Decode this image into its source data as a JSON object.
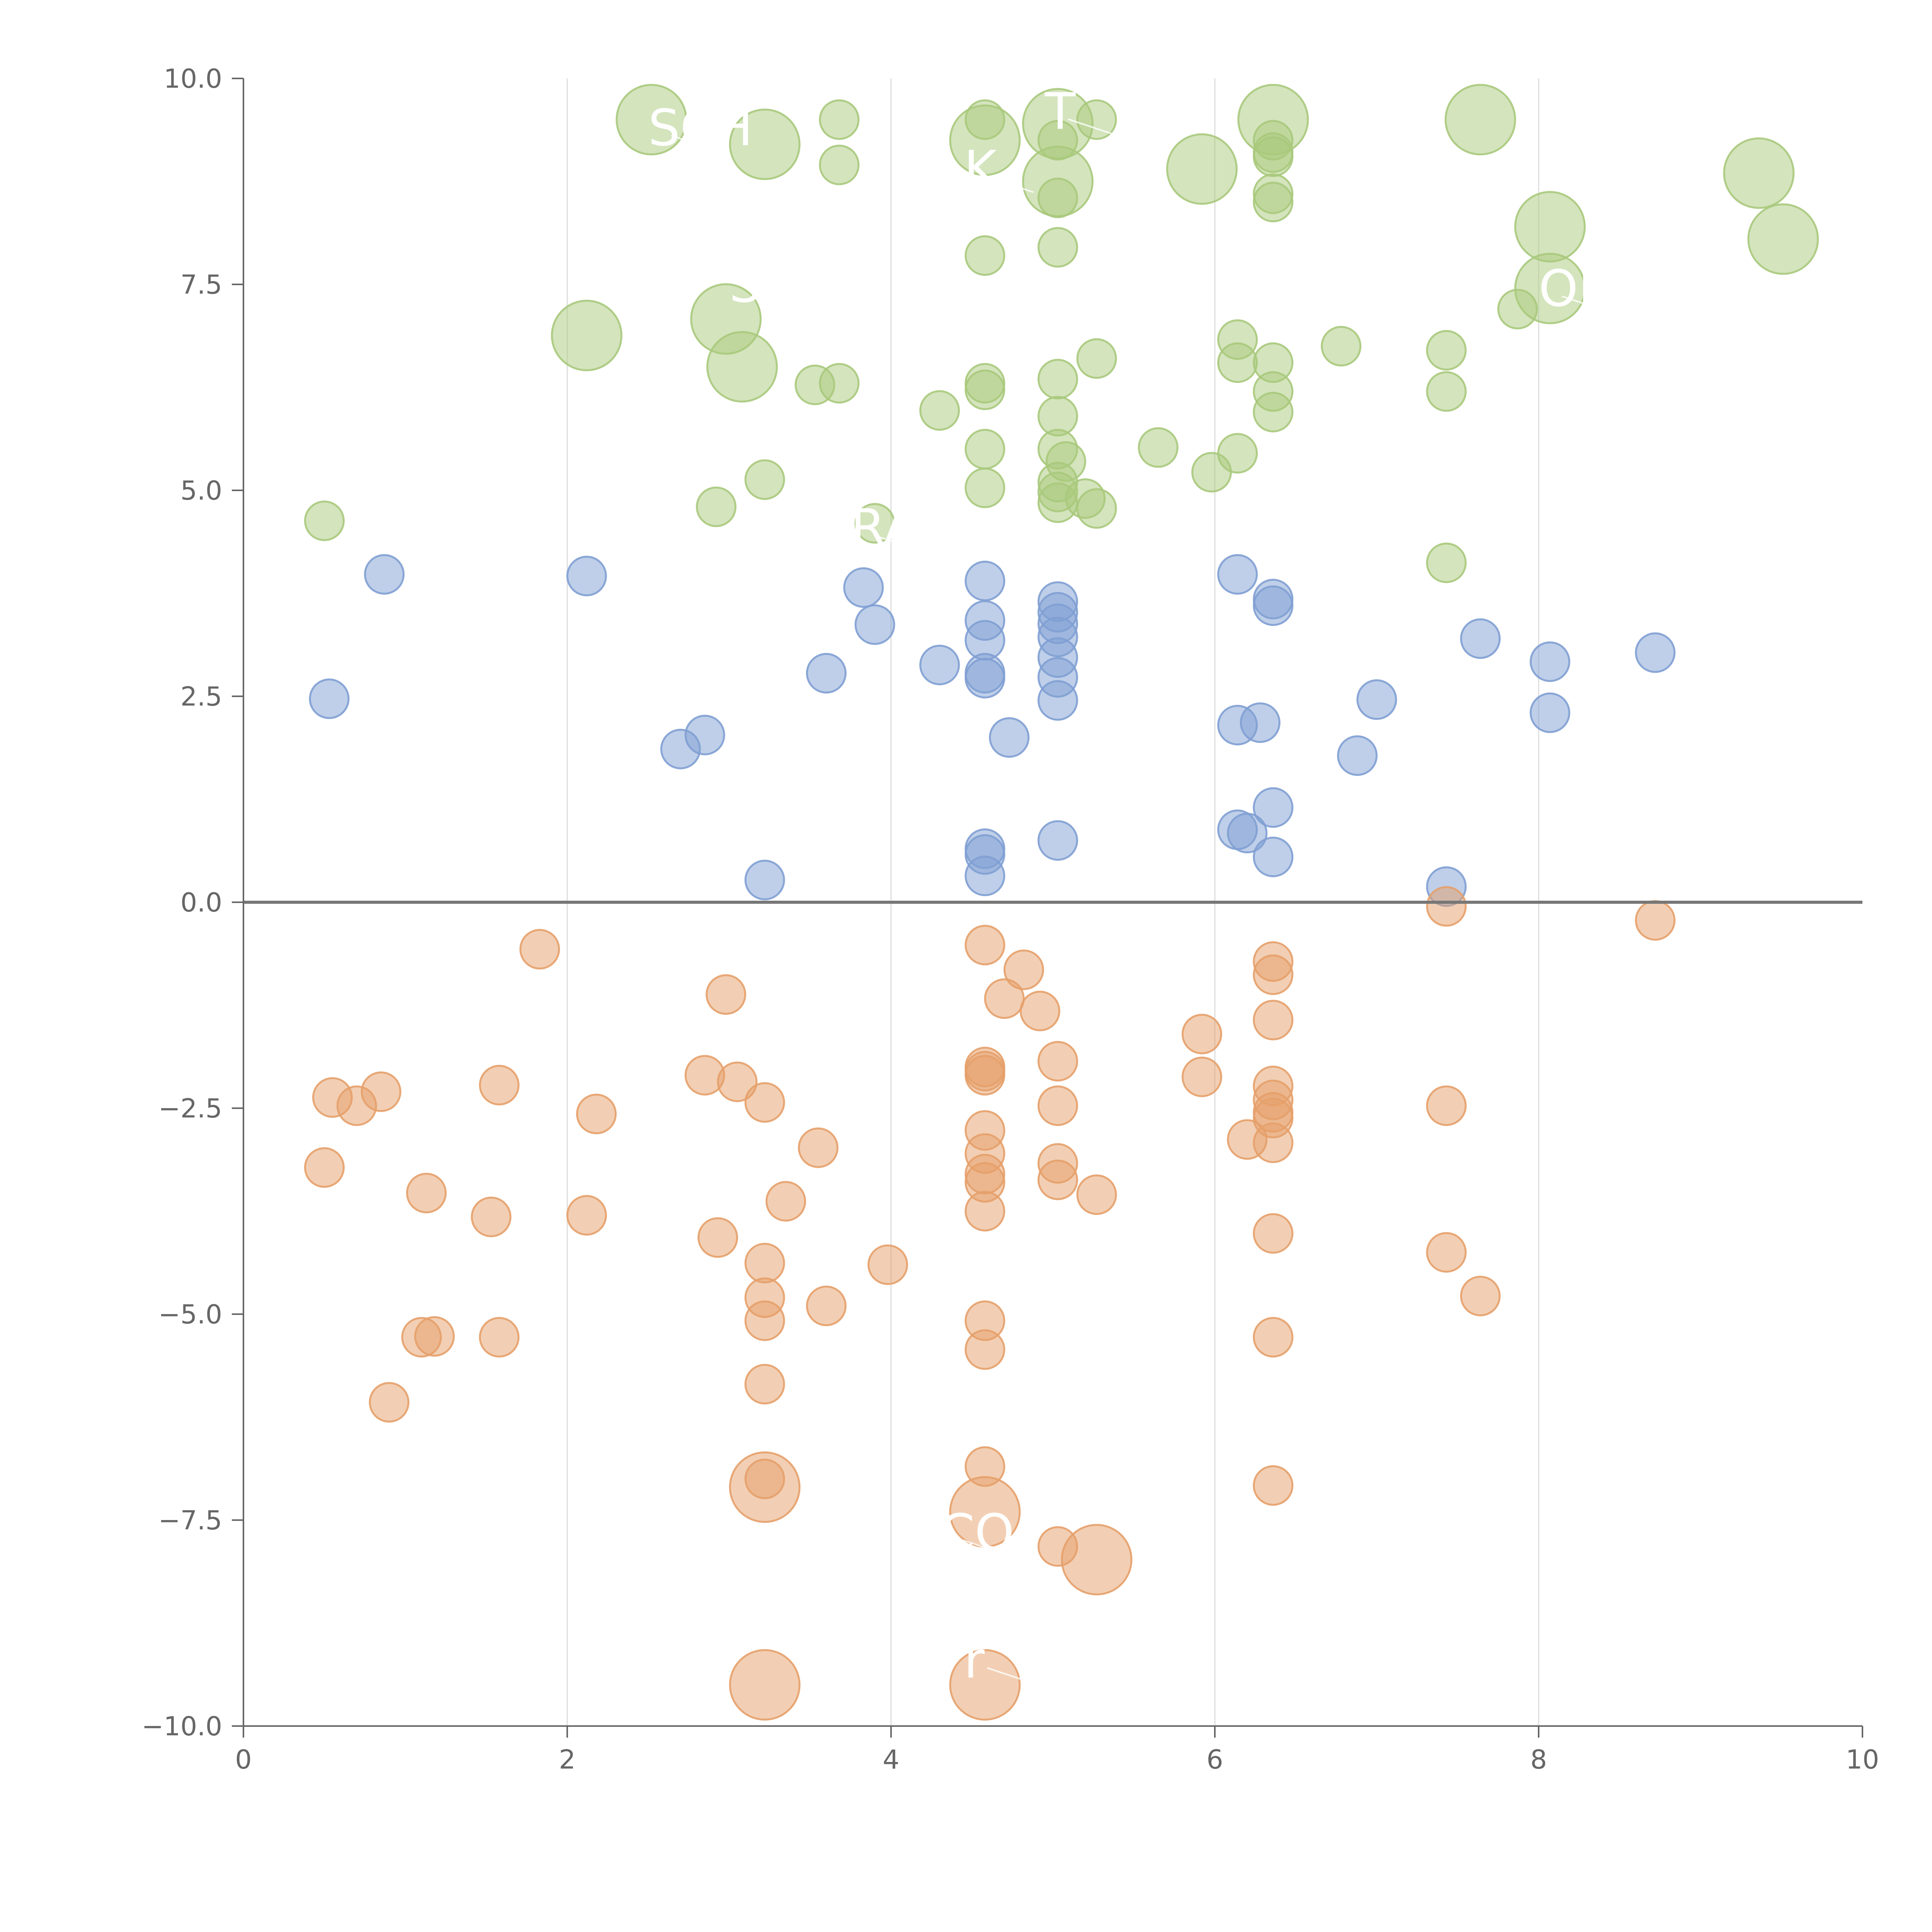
{
  "chart_data": {
    "type": "scatter",
    "title": "",
    "xlabel": "",
    "ylabel": "",
    "xlim": [
      0,
      10
    ],
    "ylim": [
      -10,
      10
    ],
    "grid": "vertical",
    "x_ticks": [
      "0",
      "2",
      "4",
      "6",
      "8",
      "10"
    ],
    "y_ticks": [
      "10.0",
      "7.5",
      "5.0",
      "2.5",
      "0.0",
      "−2.5",
      "−5.0",
      "−7.5",
      "−10.0"
    ],
    "colors": {
      "green": "#a9c97c",
      "blue": "#7f9fd3",
      "orange": "#e6a06a",
      "axis": "#666666",
      "grid": "#dddddd",
      "zero_line": "#777777"
    },
    "series": [
      {
        "name": "green",
        "color": "#a9c97c",
        "points": [
          {
            "x": 2.52,
            "y": 9.5,
            "s": "L"
          },
          {
            "x": 3.22,
            "y": 9.2,
            "s": "L"
          },
          {
            "x": 3.68,
            "y": 9.5,
            "s": "S"
          },
          {
            "x": 3.68,
            "y": 8.95,
            "s": "S"
          },
          {
            "x": 4.58,
            "y": 9.5,
            "s": "S"
          },
          {
            "x": 4.58,
            "y": 9.25,
            "s": "L"
          },
          {
            "x": 5.03,
            "y": 9.45,
            "s": "L"
          },
          {
            "x": 5.27,
            "y": 9.5,
            "s": "S"
          },
          {
            "x": 5.03,
            "y": 9.25,
            "s": "S"
          },
          {
            "x": 5.03,
            "y": 8.75,
            "s": "L"
          },
          {
            "x": 5.03,
            "y": 8.55,
            "s": "S"
          },
          {
            "x": 5.92,
            "y": 8.9,
            "s": "L"
          },
          {
            "x": 6.36,
            "y": 9.5,
            "s": "L"
          },
          {
            "x": 6.36,
            "y": 9.25,
            "s": "S"
          },
          {
            "x": 6.36,
            "y": 9.1,
            "s": "S"
          },
          {
            "x": 6.36,
            "y": 9.05,
            "s": "S"
          },
          {
            "x": 6.36,
            "y": 8.6,
            "s": "S"
          },
          {
            "x": 6.36,
            "y": 8.5,
            "s": "S"
          },
          {
            "x": 7.64,
            "y": 9.5,
            "s": "L"
          },
          {
            "x": 9.36,
            "y": 8.85,
            "s": "L"
          },
          {
            "x": 9.51,
            "y": 8.05,
            "s": "L"
          },
          {
            "x": 8.07,
            "y": 8.2,
            "s": "L"
          },
          {
            "x": 8.07,
            "y": 7.45,
            "s": "L"
          },
          {
            "x": 7.87,
            "y": 7.2,
            "s": "S"
          },
          {
            "x": 4.58,
            "y": 7.85,
            "s": "S"
          },
          {
            "x": 5.03,
            "y": 7.95,
            "s": "S"
          },
          {
            "x": 2.12,
            "y": 6.88,
            "s": "L"
          },
          {
            "x": 2.98,
            "y": 7.08,
            "s": "L"
          },
          {
            "x": 3.08,
            "y": 6.5,
            "s": "L"
          },
          {
            "x": 3.53,
            "y": 6.28,
            "s": "S"
          },
          {
            "x": 3.68,
            "y": 6.3,
            "s": "S"
          },
          {
            "x": 4.3,
            "y": 5.97,
            "s": "S"
          },
          {
            "x": 4.58,
            "y": 6.3,
            "s": "S"
          },
          {
            "x": 4.58,
            "y": 6.22,
            "s": "S"
          },
          {
            "x": 5.03,
            "y": 6.35,
            "s": "S"
          },
          {
            "x": 5.27,
            "y": 6.6,
            "s": "S"
          },
          {
            "x": 6.14,
            "y": 6.83,
            "s": "S"
          },
          {
            "x": 6.14,
            "y": 6.55,
            "s": "S"
          },
          {
            "x": 6.36,
            "y": 6.55,
            "s": "S"
          },
          {
            "x": 6.36,
            "y": 6.2,
            "s": "S"
          },
          {
            "x": 6.36,
            "y": 5.95,
            "s": "S"
          },
          {
            "x": 6.78,
            "y": 6.75,
            "s": "S"
          },
          {
            "x": 7.43,
            "y": 6.7,
            "s": "S"
          },
          {
            "x": 7.43,
            "y": 6.2,
            "s": "S"
          },
          {
            "x": 4.58,
            "y": 5.5,
            "s": "S"
          },
          {
            "x": 5.03,
            "y": 5.9,
            "s": "S"
          },
          {
            "x": 5.03,
            "y": 5.5,
            "s": "S"
          },
          {
            "x": 5.08,
            "y": 5.35,
            "s": "S"
          },
          {
            "x": 5.65,
            "y": 5.52,
            "s": "S"
          },
          {
            "x": 6.14,
            "y": 5.45,
            "s": "S"
          },
          {
            "x": 5.98,
            "y": 5.22,
            "s": "S"
          },
          {
            "x": 3.22,
            "y": 5.13,
            "s": "S"
          },
          {
            "x": 4.58,
            "y": 5.03,
            "s": "S"
          },
          {
            "x": 5.03,
            "y": 5.1,
            "s": "S"
          },
          {
            "x": 5.03,
            "y": 4.98,
            "s": "S"
          },
          {
            "x": 5.03,
            "y": 4.85,
            "s": "S"
          },
          {
            "x": 5.2,
            "y": 4.9,
            "s": "S"
          },
          {
            "x": 5.27,
            "y": 4.78,
            "s": "S"
          },
          {
            "x": 2.92,
            "y": 4.8,
            "s": "S"
          },
          {
            "x": 0.5,
            "y": 4.63,
            "s": "S"
          },
          {
            "x": 3.9,
            "y": 4.6,
            "s": "S"
          },
          {
            "x": 7.43,
            "y": 4.12,
            "s": "S"
          }
        ]
      },
      {
        "name": "blue",
        "color": "#7f9fd3",
        "points": [
          {
            "x": 0.87,
            "y": 3.98,
            "s": "S"
          },
          {
            "x": 2.12,
            "y": 3.96,
            "s": "S"
          },
          {
            "x": 0.53,
            "y": 2.47,
            "s": "S"
          },
          {
            "x": 3.83,
            "y": 3.82,
            "s": "S"
          },
          {
            "x": 3.9,
            "y": 3.37,
            "s": "S"
          },
          {
            "x": 3.6,
            "y": 2.78,
            "s": "S"
          },
          {
            "x": 4.3,
            "y": 2.88,
            "s": "S"
          },
          {
            "x": 4.58,
            "y": 3.9,
            "s": "S"
          },
          {
            "x": 4.58,
            "y": 3.42,
            "s": "S"
          },
          {
            "x": 4.58,
            "y": 3.18,
            "s": "S"
          },
          {
            "x": 4.58,
            "y": 2.78,
            "s": "S"
          },
          {
            "x": 4.58,
            "y": 2.72,
            "s": "S"
          },
          {
            "x": 5.03,
            "y": 3.65,
            "s": "S"
          },
          {
            "x": 5.03,
            "y": 3.52,
            "s": "S"
          },
          {
            "x": 5.03,
            "y": 3.38,
            "s": "S"
          },
          {
            "x": 5.03,
            "y": 3.22,
            "s": "S"
          },
          {
            "x": 5.03,
            "y": 2.97,
            "s": "S"
          },
          {
            "x": 5.03,
            "y": 2.73,
            "s": "S"
          },
          {
            "x": 5.03,
            "y": 2.45,
            "s": "S"
          },
          {
            "x": 4.73,
            "y": 2.0,
            "s": "S"
          },
          {
            "x": 2.7,
            "y": 1.86,
            "s": "S"
          },
          {
            "x": 2.85,
            "y": 2.03,
            "s": "S"
          },
          {
            "x": 6.14,
            "y": 3.98,
            "s": "S"
          },
          {
            "x": 6.36,
            "y": 3.68,
            "s": "S"
          },
          {
            "x": 6.36,
            "y": 3.6,
            "s": "S"
          },
          {
            "x": 6.14,
            "y": 2.15,
            "s": "S"
          },
          {
            "x": 6.28,
            "y": 2.18,
            "s": "S"
          },
          {
            "x": 7.0,
            "y": 2.46,
            "s": "S"
          },
          {
            "x": 6.88,
            "y": 1.78,
            "s": "S"
          },
          {
            "x": 7.64,
            "y": 3.2,
            "s": "S"
          },
          {
            "x": 8.07,
            "y": 2.92,
            "s": "S"
          },
          {
            "x": 8.07,
            "y": 2.3,
            "s": "S"
          },
          {
            "x": 8.72,
            "y": 3.03,
            "s": "S"
          },
          {
            "x": 6.14,
            "y": 0.88,
            "s": "S"
          },
          {
            "x": 6.2,
            "y": 0.84,
            "s": "S"
          },
          {
            "x": 6.36,
            "y": 1.15,
            "s": "S"
          },
          {
            "x": 6.36,
            "y": 0.55,
            "s": "S"
          },
          {
            "x": 4.58,
            "y": 0.65,
            "s": "S"
          },
          {
            "x": 4.58,
            "y": 0.58,
            "s": "S"
          },
          {
            "x": 4.58,
            "y": 0.32,
            "s": "S"
          },
          {
            "x": 5.03,
            "y": 0.75,
            "s": "S"
          },
          {
            "x": 3.22,
            "y": 0.27,
            "s": "S"
          },
          {
            "x": 7.43,
            "y": 0.19,
            "s": "S"
          }
        ]
      },
      {
        "name": "orange",
        "color": "#e6a06a",
        "points": [
          {
            "x": 1.83,
            "y": -0.57,
            "s": "S"
          },
          {
            "x": 2.98,
            "y": -1.12,
            "s": "S"
          },
          {
            "x": 4.58,
            "y": -0.52,
            "s": "S"
          },
          {
            "x": 4.82,
            "y": -0.82,
            "s": "S"
          },
          {
            "x": 4.7,
            "y": -1.17,
            "s": "S"
          },
          {
            "x": 4.92,
            "y": -1.32,
            "s": "S"
          },
          {
            "x": 7.43,
            "y": -0.05,
            "s": "S"
          },
          {
            "x": 8.72,
            "y": -0.22,
            "s": "S"
          },
          {
            "x": 6.36,
            "y": -0.72,
            "s": "S"
          },
          {
            "x": 6.36,
            "y": -0.88,
            "s": "S"
          },
          {
            "x": 6.36,
            "y": -1.43,
            "s": "S"
          },
          {
            "x": 5.92,
            "y": -1.6,
            "s": "S"
          },
          {
            "x": 5.92,
            "y": -2.12,
            "s": "S"
          },
          {
            "x": 0.55,
            "y": -2.37,
            "s": "S"
          },
          {
            "x": 0.7,
            "y": -2.47,
            "s": "S"
          },
          {
            "x": 0.85,
            "y": -2.3,
            "s": "S"
          },
          {
            "x": 1.58,
            "y": -2.22,
            "s": "S"
          },
          {
            "x": 2.18,
            "y": -2.57,
            "s": "S"
          },
          {
            "x": 2.85,
            "y": -2.1,
            "s": "S"
          },
          {
            "x": 3.05,
            "y": -2.18,
            "s": "S"
          },
          {
            "x": 3.22,
            "y": -2.43,
            "s": "S"
          },
          {
            "x": 4.58,
            "y": -2.0,
            "s": "S"
          },
          {
            "x": 4.58,
            "y": -2.05,
            "s": "S"
          },
          {
            "x": 4.58,
            "y": -2.1,
            "s": "S"
          },
          {
            "x": 5.03,
            "y": -1.93,
            "s": "S"
          },
          {
            "x": 5.03,
            "y": -2.47,
            "s": "S"
          },
          {
            "x": 6.36,
            "y": -2.23,
            "s": "S"
          },
          {
            "x": 6.36,
            "y": -2.4,
            "s": "S"
          },
          {
            "x": 6.36,
            "y": -2.55,
            "s": "S"
          },
          {
            "x": 6.36,
            "y": -2.62,
            "s": "S"
          },
          {
            "x": 6.2,
            "y": -2.88,
            "s": "S"
          },
          {
            "x": 6.36,
            "y": -2.92,
            "s": "S"
          },
          {
            "x": 7.43,
            "y": -2.47,
            "s": "S"
          },
          {
            "x": 0.5,
            "y": -3.22,
            "s": "S"
          },
          {
            "x": 1.13,
            "y": -3.53,
            "s": "S"
          },
          {
            "x": 1.53,
            "y": -3.82,
            "s": "S"
          },
          {
            "x": 2.12,
            "y": -3.8,
            "s": "S"
          },
          {
            "x": 2.93,
            "y": -4.07,
            "s": "S"
          },
          {
            "x": 3.35,
            "y": -3.63,
            "s": "S"
          },
          {
            "x": 3.55,
            "y": -2.98,
            "s": "S"
          },
          {
            "x": 4.58,
            "y": -2.77,
            "s": "S"
          },
          {
            "x": 4.58,
            "y": -3.05,
            "s": "S"
          },
          {
            "x": 4.58,
            "y": -3.3,
            "s": "S"
          },
          {
            "x": 4.58,
            "y": -3.4,
            "s": "S"
          },
          {
            "x": 4.58,
            "y": -3.75,
            "s": "S"
          },
          {
            "x": 5.03,
            "y": -3.17,
            "s": "S"
          },
          {
            "x": 5.03,
            "y": -3.37,
            "s": "S"
          },
          {
            "x": 5.27,
            "y": -3.55,
            "s": "S"
          },
          {
            "x": 3.22,
            "y": -4.38,
            "s": "S"
          },
          {
            "x": 3.22,
            "y": -4.8,
            "s": "S"
          },
          {
            "x": 3.22,
            "y": -5.08,
            "s": "S"
          },
          {
            "x": 3.6,
            "y": -4.9,
            "s": "S"
          },
          {
            "x": 3.98,
            "y": -4.4,
            "s": "S"
          },
          {
            "x": 6.36,
            "y": -4.02,
            "s": "S"
          },
          {
            "x": 7.43,
            "y": -4.25,
            "s": "S"
          },
          {
            "x": 7.64,
            "y": -4.78,
            "s": "S"
          },
          {
            "x": 1.1,
            "y": -5.28,
            "s": "S"
          },
          {
            "x": 1.18,
            "y": -5.27,
            "s": "S"
          },
          {
            "x": 1.58,
            "y": -5.28,
            "s": "S"
          },
          {
            "x": 0.9,
            "y": -6.07,
            "s": "S"
          },
          {
            "x": 3.22,
            "y": -5.85,
            "s": "S"
          },
          {
            "x": 4.58,
            "y": -5.08,
            "s": "S"
          },
          {
            "x": 4.58,
            "y": -5.43,
            "s": "S"
          },
          {
            "x": 6.36,
            "y": -5.28,
            "s": "S"
          },
          {
            "x": 4.58,
            "y": -6.85,
            "s": "S"
          },
          {
            "x": 6.36,
            "y": -7.08,
            "s": "S"
          },
          {
            "x": 3.22,
            "y": -7.0,
            "s": "S"
          },
          {
            "x": 3.22,
            "y": -7.1,
            "s": "L"
          },
          {
            "x": 4.58,
            "y": -7.4,
            "s": "L"
          },
          {
            "x": 5.03,
            "y": -7.82,
            "s": "S"
          },
          {
            "x": 5.27,
            "y": -7.98,
            "s": "L"
          },
          {
            "x": 3.22,
            "y": -9.5,
            "s": "L"
          },
          {
            "x": 4.58,
            "y": -9.5,
            "s": "L"
          }
        ]
      }
    ],
    "annotations": [
      {
        "text": "SCH",
        "x": 2.5,
        "y": 9.4
      },
      {
        "text": "T",
        "x": 4.95,
        "y": 9.6
      },
      {
        "text": "K",
        "x": 4.45,
        "y": 8.9
      },
      {
        "text": "S",
        "x": 3.0,
        "y": 7.5
      },
      {
        "text": "OB",
        "x": 8.0,
        "y": 7.45
      },
      {
        "text": "RA",
        "x": 3.75,
        "y": 4.55
      },
      {
        "text": "CO",
        "x": 4.3,
        "y": -7.65
      },
      {
        "text": "r",
        "x": 4.45,
        "y": -9.2
      }
    ]
  }
}
